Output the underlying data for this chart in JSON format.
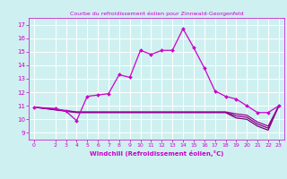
{
  "title": "Courbe du refroidissement éolien pour Zinnwald-Georgenfeld",
  "xlabel": "Windchill (Refroidissement éolien,°C)",
  "background_color": "#cff0f0",
  "grid_color": "#ffffff",
  "line_color": "#cc00cc",
  "line_color2": "#990099",
  "line_color3": "#880088",
  "line_color4": "#770077",
  "xlim": [
    -0.5,
    23.5
  ],
  "ylim": [
    8.5,
    17.5
  ],
  "yticks": [
    9,
    10,
    11,
    12,
    13,
    14,
    15,
    16,
    17
  ],
  "xticks": [
    0,
    2,
    3,
    4,
    5,
    6,
    7,
    8,
    9,
    10,
    11,
    12,
    13,
    14,
    15,
    16,
    17,
    18,
    19,
    20,
    21,
    22,
    23
  ],
  "series1_x": [
    0,
    2,
    3,
    4,
    5,
    6,
    7,
    8,
    9,
    10,
    11,
    12,
    13,
    14,
    15,
    16,
    17,
    18,
    19,
    20,
    21,
    22,
    23
  ],
  "series1_y": [
    10.9,
    10.8,
    10.6,
    9.9,
    11.7,
    11.8,
    11.9,
    13.3,
    13.1,
    15.1,
    14.8,
    15.1,
    15.1,
    16.7,
    15.3,
    13.8,
    12.1,
    11.7,
    11.5,
    11.0,
    10.5,
    10.5,
    11.0
  ],
  "series2_x": [
    0,
    2,
    3,
    4,
    5,
    6,
    7,
    8,
    9,
    10,
    11,
    12,
    13,
    14,
    15,
    16,
    17,
    18,
    19,
    20,
    21,
    22,
    23
  ],
  "series2_y": [
    10.9,
    10.75,
    10.65,
    10.55,
    10.55,
    10.55,
    10.55,
    10.55,
    10.55,
    10.55,
    10.55,
    10.55,
    10.55,
    10.55,
    10.55,
    10.55,
    10.55,
    10.55,
    10.4,
    10.3,
    9.8,
    9.5,
    11.0
  ],
  "series3_x": [
    0,
    2,
    3,
    4,
    5,
    6,
    7,
    8,
    9,
    10,
    11,
    12,
    13,
    14,
    15,
    16,
    17,
    18,
    19,
    20,
    21,
    22,
    23
  ],
  "series3_y": [
    10.9,
    10.72,
    10.62,
    10.52,
    10.52,
    10.52,
    10.52,
    10.52,
    10.52,
    10.52,
    10.52,
    10.52,
    10.52,
    10.52,
    10.52,
    10.52,
    10.52,
    10.52,
    10.25,
    10.15,
    9.65,
    9.35,
    11.0
  ],
  "series4_x": [
    0,
    2,
    3,
    4,
    5,
    6,
    7,
    8,
    9,
    10,
    11,
    12,
    13,
    14,
    15,
    16,
    17,
    18,
    19,
    20,
    21,
    22,
    23
  ],
  "series4_y": [
    10.9,
    10.7,
    10.6,
    10.5,
    10.5,
    10.5,
    10.5,
    10.5,
    10.5,
    10.5,
    10.5,
    10.5,
    10.5,
    10.5,
    10.5,
    10.5,
    10.5,
    10.5,
    10.1,
    10.0,
    9.5,
    9.2,
    11.0
  ]
}
